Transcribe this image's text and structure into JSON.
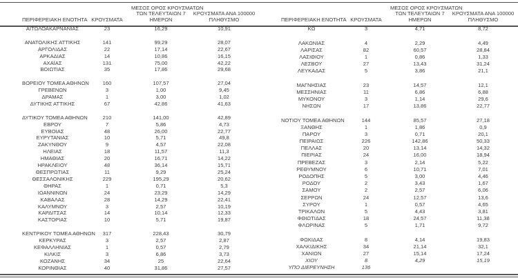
{
  "meta": {
    "background": "#ffffff",
    "text_color": "#3d3d3d",
    "rule_color": "#4f4f4f",
    "bottom_rule_style": "double"
  },
  "headers": {
    "region": "ΠΕΡΙΦΕΡΕΙΑΚΗ ΕΝΟΤΗΤΑ",
    "cases": "ΚΡΟΥΣΜΑΤΑ",
    "avg7": "ΜΕΣΟΣ ΟΡΟΣ ΚΡΟΥΣΜΑΤΩΝ ΤΩΝ ΤΕΛΕΥΤΑΙΩΝ 7 ΗΜΕΡΩΝ",
    "avg7_lines": [
      "ΜΕΣΟΣ ΟΡΟΣ ΚΡΟΥΣΜΑΤΩΝ",
      "ΤΩΝ ΤΕΛΕΥΤΑΙΩΝ 7",
      "ΗΜΕΡΩΝ"
    ],
    "per100k": "ΚΡΟΥΣΜΑΤΑ ΑΝΑ 100000 ΠΛΗΘΥΣΜΟ",
    "per100k_lines": [
      "ΚΡΟΥΣΜΑΤΑ ΑΝΑ 100000",
      "ΠΛΗΘΥΣΜΟ"
    ]
  },
  "chart_data": [
    {
      "type": "table",
      "side": "left",
      "columns": [
        "ΠΕΡΙΦΕΡΕΙΑΚΗ ΕΝΟΤΗΤΑ",
        "ΚΡΟΥΣΜΑΤΑ",
        "ΜΕΣΟΣ ΟΡΟΣ ΚΡΟΥΣΜΑΤΩΝ ΤΩΝ ΤΕΛΕΥΤΑΙΩΝ 7 ΗΜΕΡΩΝ",
        "ΚΡΟΥΣΜΑΤΑ ΑΝΑ 100000 ΠΛΗΘΥΣΜΟ"
      ],
      "groups": [
        [
          {
            "region": "ΑΙΤΩΛΟΑΚΑΡΝΑΝΙΑΣ",
            "cases": "23",
            "avg7": "16,29",
            "per100k": "10,91"
          }
        ],
        [
          {
            "region": "ΑΝΑΤΟΛΙΚΗΣ ΑΤΤΙΚΗΣ",
            "cases": "141",
            "avg7": "99,29",
            "per100k": "28,07"
          },
          {
            "region": "ΑΡΓΟΛΙΔΑΣ",
            "cases": "22",
            "avg7": "17,14",
            "per100k": "22,67"
          },
          {
            "region": "ΑΡΚΑΔΙΑΣ",
            "cases": "14",
            "avg7": "10,86",
            "per100k": "16,15"
          },
          {
            "region": "ΑΧΑΪΑΣ",
            "cases": "131",
            "avg7": "75,00",
            "per100k": "42,22"
          },
          {
            "region": "ΒΟΙΩΤΙΑΣ",
            "cases": "35",
            "avg7": "17,86",
            "per100k": "29,68"
          }
        ],
        [
          {
            "region": "ΒΟΡΕΙΟΥ ΤΟΜΕΑ ΑΘΗΝΩΝ",
            "cases": "160",
            "avg7": "107,57",
            "per100k": "27,04"
          },
          {
            "region": "ΓΡΕΒΕΝΩΝ",
            "cases": "3",
            "avg7": "1,00",
            "per100k": "9,45"
          },
          {
            "region": "ΔΡΑΜΑΣ",
            "cases": "1",
            "avg7": "3,00",
            "per100k": "1,02"
          },
          {
            "region": "ΔΥΤΙΚΗΣ ΑΤΤΙΚΗΣ",
            "cases": "67",
            "avg7": "42,86",
            "per100k": "41,63"
          }
        ],
        [
          {
            "region": "ΔΥΤΙΚΟΥ ΤΟΜΕΑ ΑΘΗΝΩΝ",
            "cases": "210",
            "avg7": "141,00",
            "per100k": "42,89"
          },
          {
            "region": "ΕΒΡΟΥ",
            "cases": "7",
            "avg7": "5,86",
            "per100k": "4,73"
          },
          {
            "region": "ΕΥΒΟΙΑΣ",
            "cases": "48",
            "avg7": "26,00",
            "per100k": "22,77"
          },
          {
            "region": "ΕΥΡΥΤΑΝΙΑΣ",
            "cases": "10",
            "avg7": "5,71",
            "per100k": "49,8"
          },
          {
            "region": "ΖΑΚΥΝΘΟΥ",
            "cases": "9",
            "avg7": "4,57",
            "per100k": "22,08"
          },
          {
            "region": "ΗΛΕΙΑΣ",
            "cases": "18",
            "avg7": "11,57",
            "per100k": "11,3"
          },
          {
            "region": "ΗΜΑΘΙΑΣ",
            "cases": "20",
            "avg7": "16,71",
            "per100k": "14,22"
          },
          {
            "region": "ΗΡΑΚΛΕΙΟΥ",
            "cases": "48",
            "avg7": "36,14",
            "per100k": "15,71"
          },
          {
            "region": "ΘΕΣΠΡΩΤΙΑΣ",
            "cases": "11",
            "avg7": "9,29",
            "per100k": "25,24"
          },
          {
            "region": "ΘΕΣΣΑΛΟΝΙΚΗΣ",
            "cases": "229",
            "avg7": "195,29",
            "per100k": "20,62"
          },
          {
            "region": "ΘΗΡΑΣ",
            "cases": "1",
            "avg7": "0,71",
            "per100k": "5,3"
          },
          {
            "region": "ΙΩΑΝΝΙΝΩΝ",
            "cases": "24",
            "avg7": "23,29",
            "per100k": "14,29"
          },
          {
            "region": "ΚΑΒΑΛΑΣ",
            "cases": "28",
            "avg7": "14,29",
            "per100k": "22,41"
          },
          {
            "region": "ΚΑΛΥΜΝΟΥ",
            "cases": "3",
            "avg7": "2,57",
            "per100k": "10,19"
          },
          {
            "region": "ΚΑΡΔΙΤΣΑΣ",
            "cases": "14",
            "avg7": "10,14",
            "per100k": "12,33"
          },
          {
            "region": "ΚΑΣΤΟΡΙΑΣ",
            "cases": "10",
            "avg7": "5,71",
            "per100k": "19,87"
          }
        ],
        [
          {
            "region": "ΚΕΝΤΡΙΚΟΥ ΤΟΜΕΑ ΑΘΗΝΩΝ",
            "cases": "317",
            "avg7": "228,43",
            "per100k": "30,79"
          },
          {
            "region": "ΚΕΡΚΥΡΑΣ",
            "cases": "3",
            "avg7": "2,57",
            "per100k": "2,87"
          },
          {
            "region": "ΚΕΦΑΛΛΗΝΙΑΣ",
            "cases": "1",
            "avg7": "0,57",
            "per100k": "2,79"
          },
          {
            "region": "ΚΙΛΚΙΣ",
            "cases": "3",
            "avg7": "6,86",
            "per100k": "3,73"
          },
          {
            "region": "ΚΟΖΑΝΗΣ",
            "cases": "34",
            "avg7": "25",
            "per100k": "22,64"
          },
          {
            "region": "ΚΟΡΙΝΘΙΑΣ",
            "cases": "40",
            "avg7": "31,86",
            "per100k": "27,57"
          }
        ]
      ]
    },
    {
      "type": "table",
      "side": "right",
      "columns": [
        "ΠΕΡΙΦΕΡΕΙΑΚΗ ΕΝΟΤΗΤΑ",
        "ΚΡΟΥΣΜΑΤΑ",
        "ΜΕΣΟΣ ΟΡΟΣ ΚΡΟΥΣΜΑΤΩΝ ΤΩΝ ΤΕΛΕΥΤΑΙΩΝ 7 ΗΜΕΡΩΝ",
        "ΚΡΟΥΣΜΑΤΑ ΑΝΑ 100000 ΠΛΗΘΥΣΜΟ"
      ],
      "groups": [
        [
          {
            "region": "ΚΩ",
            "cases": "3",
            "avg7": "4,71",
            "per100k": "8,72"
          }
        ],
        [
          {
            "region": "ΛΑΚΩΝΙΑΣ",
            "cases": "4",
            "avg7": "2,29",
            "per100k": "4,49"
          },
          {
            "region": "ΛΑΡΙΣΑΣ",
            "cases": "82",
            "avg7": "60,57",
            "per100k": "28,84"
          },
          {
            "region": "ΛΑΣΙΘΙΟΥ",
            "cases": "1",
            "avg7": "0,86",
            "per100k": "1,33"
          },
          {
            "region": "ΛΕΣΒΟΥ",
            "cases": "27",
            "avg7": "13,43",
            "per100k": "31,24"
          },
          {
            "region": "ΛΕΥΚΑΔΑΣ",
            "cases": "5",
            "avg7": "3,86",
            "per100k": "21,1"
          }
        ],
        [
          {
            "region": "ΜΑΓΝΗΣΙΑΣ",
            "cases": "23",
            "avg7": "14,57",
            "per100k": "12,1"
          },
          {
            "region": "ΜΕΣΣΗΝΙΑΣ",
            "cases": "11",
            "avg7": "6,86",
            "per100k": "6,88"
          },
          {
            "region": "ΜΥΚΟΝΟΥ",
            "cases": "3",
            "avg7": "1,14",
            "per100k": "29,6"
          },
          {
            "region": "ΝΗΣΩΝ",
            "cases": "17",
            "avg7": "13,86",
            "per100k": "22,77"
          }
        ],
        [
          {
            "region": "ΝΟΤΙΟΥ ΤΟΜΕΑ ΑΘΗΝΩΝ",
            "cases": "144",
            "avg7": "85,57",
            "per100k": "27,18"
          },
          {
            "region": "ΞΑΝΘΗΣ",
            "cases": "1",
            "avg7": "1,86",
            "per100k": "0,9"
          },
          {
            "region": "ΠΑΡΟΥ",
            "cases": "3",
            "avg7": "0,71",
            "per100k": "20,1"
          },
          {
            "region": "ΠΕΙΡΑΙΩΣ",
            "cases": "226",
            "avg7": "142,86",
            "per100k": "50,33"
          },
          {
            "region": "ΠΕΛΛΑΣ",
            "cases": "20",
            "avg7": "13,14",
            "per100k": "14,32"
          },
          {
            "region": "ΠΙΕΡΙΑΣ",
            "cases": "24",
            "avg7": "16,00",
            "per100k": "18,94"
          },
          {
            "region": "ΠΡΕΒΕΖΑΣ",
            "cases": "3",
            "avg7": "2,14",
            "per100k": "5,22"
          },
          {
            "region": "ΡΕΘΥΜΝΟΥ",
            "cases": "6",
            "avg7": "10,71",
            "per100k": "7,01"
          },
          {
            "region": "ΡΟΔΟΠΗΣ",
            "cases": "5",
            "avg7": "3,00",
            "per100k": "4,46"
          },
          {
            "region": "ΡΟΔΟΥ",
            "cases": "2",
            "avg7": "3,43",
            "per100k": "1,67"
          },
          {
            "region": "ΣΑΜΟΥ",
            "cases": "2",
            "avg7": "2,57",
            "per100k": "6,06"
          },
          {
            "region": "ΣΕΡΡΩΝ",
            "cases": "24",
            "avg7": "12,57",
            "per100k": "13,6"
          },
          {
            "region": "ΣΥΡΟΥ",
            "cases": "1",
            "avg7": "0,57",
            "per100k": "4,65"
          },
          {
            "region": "ΤΡΙΚΑΛΩΝ",
            "cases": "5",
            "avg7": "4,43",
            "per100k": "3,81"
          },
          {
            "region": "ΦΘΙΩΤΙΔΑΣ",
            "cases": "18",
            "avg7": "24,57",
            "per100k": "11,38"
          },
          {
            "region": "ΦΛΩΡΙΝΑΣ",
            "cases": "5",
            "avg7": "1,71",
            "per100k": "9,72"
          }
        ],
        [
          {
            "region": "ΦΩΚΙΔΑΣ",
            "cases": "8",
            "avg7": "4,14",
            "per100k": "19,83"
          },
          {
            "region": "ΧΑΛΚΙΔΙΚΗΣ",
            "cases": "34",
            "avg7": "21,14",
            "per100k": "32,1"
          },
          {
            "region": "ΧΑΝΙΩΝ",
            "cases": "27",
            "avg7": "15,14",
            "per100k": "17,24"
          },
          {
            "region": "ΧΙΟΥ",
            "cases": "8",
            "avg7": "4,29",
            "per100k": "15,19",
            "italic": true
          },
          {
            "region": "ΥΠΟ ΔΙΕΡΕΥΝΗΣΗ",
            "cases": "136",
            "avg7": "",
            "per100k": "",
            "italic": true
          }
        ]
      ]
    }
  ]
}
